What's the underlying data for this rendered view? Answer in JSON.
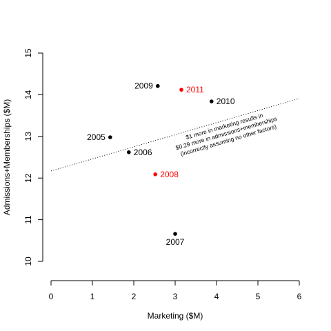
{
  "chart_data": {
    "type": "scatter",
    "xlabel": "Marketing ($M)",
    "ylabel": "Admissions+Memberships ($M)",
    "xlim": [
      0,
      6
    ],
    "ylim": [
      10,
      15
    ],
    "x_ticks": [
      0,
      1,
      2,
      3,
      4,
      5,
      6
    ],
    "y_ticks": [
      10,
      11,
      12,
      13,
      14,
      15
    ],
    "points": [
      {
        "label": "2005",
        "x": 1.43,
        "y": 12.98,
        "color": "#000000",
        "label_side": "left"
      },
      {
        "label": "2006",
        "x": 1.88,
        "y": 12.62,
        "color": "#000000",
        "label_side": "right"
      },
      {
        "label": "2007",
        "x": 3.0,
        "y": 10.66,
        "color": "#000000",
        "label_side": "below"
      },
      {
        "label": "2008",
        "x": 2.52,
        "y": 12.09,
        "color": "#ff0000",
        "label_side": "right"
      },
      {
        "label": "2009",
        "x": 2.58,
        "y": 14.21,
        "color": "#000000",
        "label_side": "left"
      },
      {
        "label": "2010",
        "x": 3.88,
        "y": 13.84,
        "color": "#000000",
        "label_side": "right"
      },
      {
        "label": "2011",
        "x": 3.15,
        "y": 14.12,
        "color": "#ff0000",
        "label_side": "right"
      }
    ],
    "trend_line": {
      "intercept": 12.17,
      "slope": 0.29,
      "style": "dotted"
    },
    "annotation": [
      "$1 more in marketing results in",
      "$0.29 more in admissions+memberships",
      "(incorrectly assuming no other factors)"
    ],
    "grid": false,
    "legend": "none"
  }
}
